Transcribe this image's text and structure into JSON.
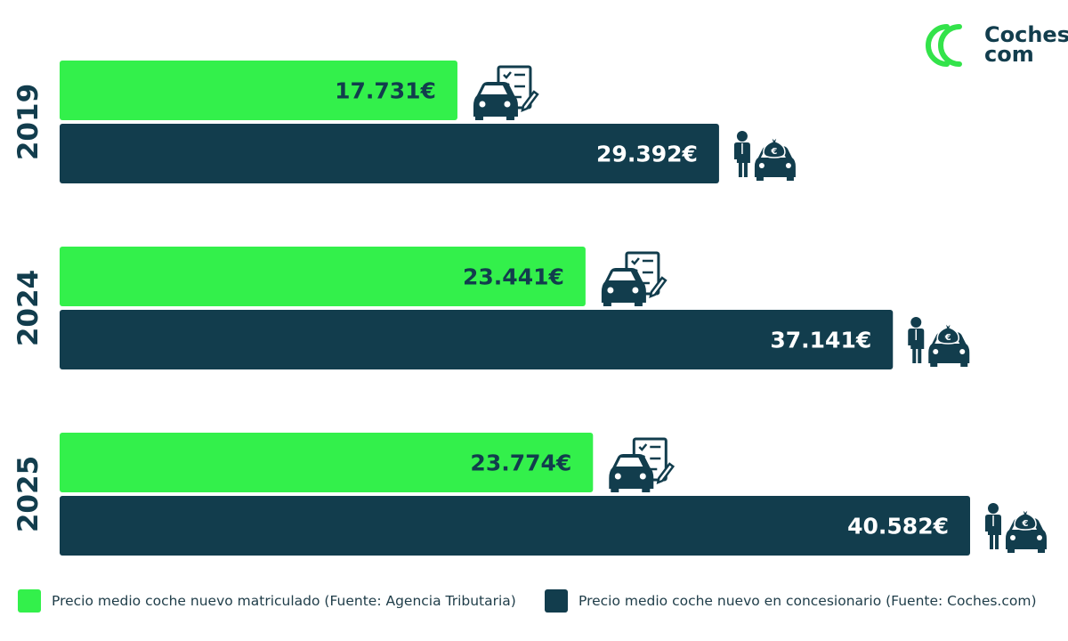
{
  "logo": {
    "line1": "Coches",
    "line2": "com"
  },
  "chart_data": {
    "type": "bar",
    "orientation": "horizontal",
    "categories": [
      "2019",
      "2024",
      "2025"
    ],
    "series": [
      {
        "name": "Precio medio coche nuevo matriculado (Fuente: Agencia Tributaria)",
        "color": "#33f04b",
        "icon": "car-checklist-icon",
        "values": [
          17731,
          23441,
          23774
        ],
        "labels": [
          "17.731€",
          "23.441€",
          "23.774€"
        ]
      },
      {
        "name": "Precio medio coche nuevo en concesionario (Fuente: Coches.com)",
        "color": "#123d4d",
        "icon": "dealer-car-money-icon",
        "values": [
          29392,
          37141,
          40582
        ],
        "labels": [
          "29.392€",
          "37.141€",
          "40.582€"
        ]
      }
    ],
    "xlim": [
      0,
      40582
    ],
    "grid": false,
    "legend_position": "bottom"
  }
}
